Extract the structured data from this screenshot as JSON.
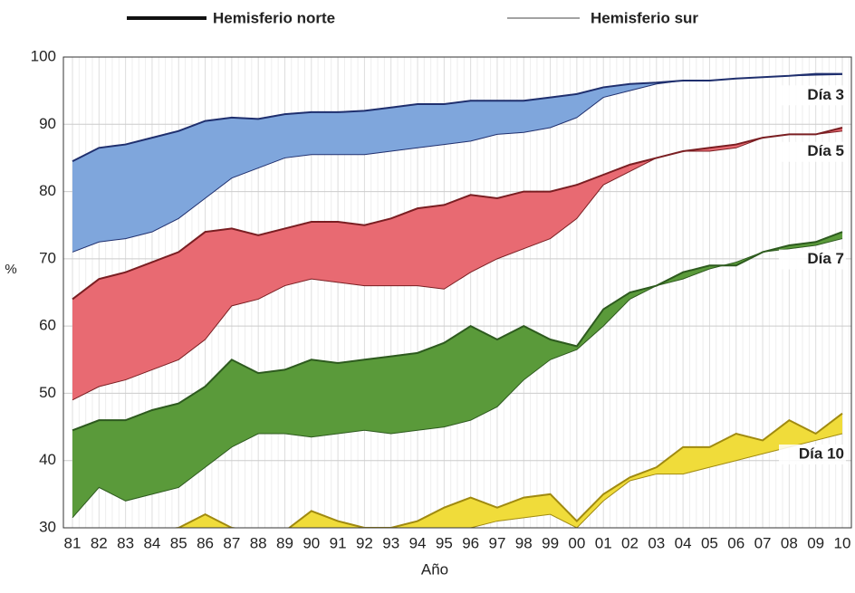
{
  "chart_data": {
    "type": "band",
    "legend": [
      {
        "label": "Hemisferio norte"
      },
      {
        "label": "Hemisferio sur"
      }
    ],
    "ylabel": "%",
    "xlabel": "Año",
    "categories": [
      "81",
      "82",
      "83",
      "84",
      "85",
      "86",
      "87",
      "88",
      "89",
      "90",
      "91",
      "92",
      "93",
      "94",
      "95",
      "96",
      "97",
      "98",
      "99",
      "00",
      "01",
      "02",
      "03",
      "04",
      "05",
      "06",
      "07",
      "08",
      "09",
      "10"
    ],
    "ylim": [
      30,
      100
    ],
    "yticks": [
      30,
      40,
      50,
      60,
      70,
      80,
      90,
      100
    ],
    "grid": true,
    "bands": [
      {
        "label": "Día 3",
        "color": "#7fa6dc",
        "line_color": "#1f2f6e",
        "north": [
          84.5,
          86.5,
          87,
          88,
          89,
          90.5,
          91,
          90.8,
          91.5,
          91.8,
          91.8,
          92,
          92.5,
          93,
          93,
          93.5,
          93.5,
          93.5,
          94,
          94.5,
          95.5,
          96,
          96.2,
          96.5,
          96.5,
          96.8,
          97,
          97.2,
          97.5,
          97.5
        ],
        "south": [
          71,
          72.5,
          73,
          74,
          76,
          79,
          82,
          83.5,
          85,
          85.5,
          85.5,
          85.5,
          86,
          86.5,
          87,
          87.5,
          88.5,
          88.8,
          89.5,
          91,
          94,
          95,
          96,
          96.5,
          96.5,
          96.8,
          97,
          97.2,
          97.3,
          97.4
        ]
      },
      {
        "label": "Día 5",
        "color": "#e86a72",
        "line_color": "#7a1e22",
        "north": [
          64,
          67,
          68,
          69.5,
          71,
          74,
          74.5,
          73.5,
          74.5,
          75.5,
          75.5,
          75,
          76,
          77.5,
          78,
          79.5,
          79,
          80,
          80,
          81,
          82.5,
          84,
          85,
          86,
          86.5,
          87,
          88,
          88.5,
          88.5,
          89.5
        ],
        "south": [
          49,
          51,
          52,
          53.5,
          55,
          58,
          63,
          64,
          66,
          67,
          66.5,
          66,
          66,
          66,
          65.5,
          68,
          70,
          71.5,
          73,
          76,
          81,
          83,
          85,
          86,
          86,
          86.5,
          88,
          88.5,
          88.5,
          89
        ]
      },
      {
        "label": "Día 7",
        "color": "#5a9a3a",
        "line_color": "#2d5a1e",
        "north": [
          44.5,
          46,
          46,
          47.5,
          48.5,
          51,
          55,
          53,
          53.5,
          55,
          54.5,
          55,
          55.5,
          56,
          57.5,
          60,
          58,
          60,
          58,
          57,
          62.5,
          65,
          66,
          68,
          69,
          69,
          71,
          72,
          72.5,
          74
        ],
        "south": [
          31.5,
          36,
          34,
          35,
          36,
          39,
          42,
          44,
          44,
          43.5,
          44,
          44.5,
          44,
          44.5,
          45,
          46,
          48,
          52,
          55,
          56.5,
          60,
          64,
          66,
          67,
          68.5,
          69.5,
          71,
          71.5,
          72,
          73
        ]
      },
      {
        "label": "Día 10",
        "color": "#f0dc3a",
        "line_color": "#a08a10",
        "north": [
          29,
          29,
          29.5,
          29.5,
          30,
          32,
          30,
          29.5,
          29.5,
          32.5,
          31,
          30,
          30,
          31,
          33,
          34.5,
          33,
          34.5,
          35,
          31,
          35,
          37.5,
          39,
          42,
          42,
          44,
          43,
          46,
          44,
          47
        ],
        "south": [
          27,
          27,
          27.5,
          27.5,
          28,
          29,
          28,
          28,
          28,
          29,
          29,
          28,
          28,
          28.5,
          29.5,
          30,
          31,
          31.5,
          32,
          30,
          34,
          37,
          38,
          38,
          39,
          40,
          41,
          42,
          43,
          44
        ]
      }
    ]
  }
}
